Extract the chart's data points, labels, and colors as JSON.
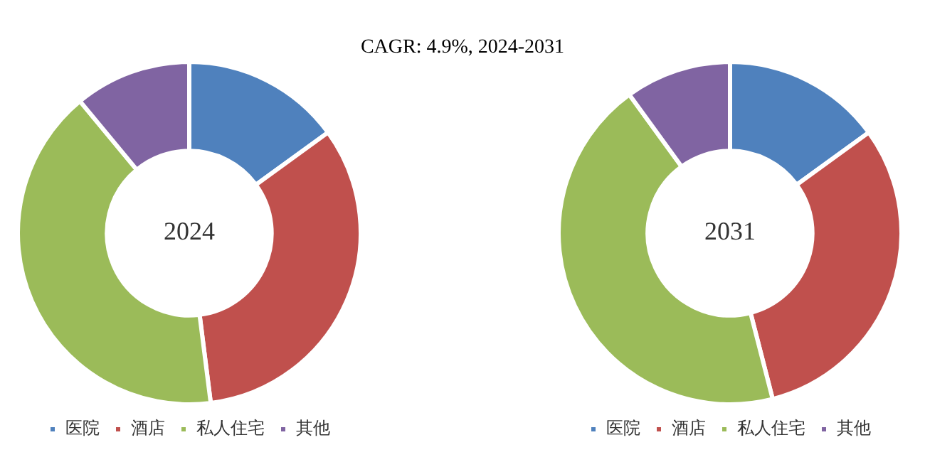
{
  "chart_data": [
    {
      "type": "donut",
      "title": "CAGR:   4.9%, 2024-2031",
      "annotations": [
        "2024"
      ],
      "categories": [
        "医院",
        "酒店",
        "私人住宅",
        "其他"
      ],
      "values": [
        15,
        33,
        41,
        11
      ],
      "colors": [
        "#4f81bd",
        "#c0504d",
        "#9bbb59",
        "#8064a2"
      ],
      "legend": "bottom"
    },
    {
      "type": "donut",
      "annotations": [
        "2031"
      ],
      "categories": [
        "医院",
        "酒店",
        "私人住宅",
        "其他"
      ],
      "values": [
        15,
        31,
        44,
        10
      ],
      "colors": [
        "#4f81bd",
        "#c0504d",
        "#9bbb59",
        "#8064a2"
      ],
      "legend": "bottom"
    }
  ]
}
